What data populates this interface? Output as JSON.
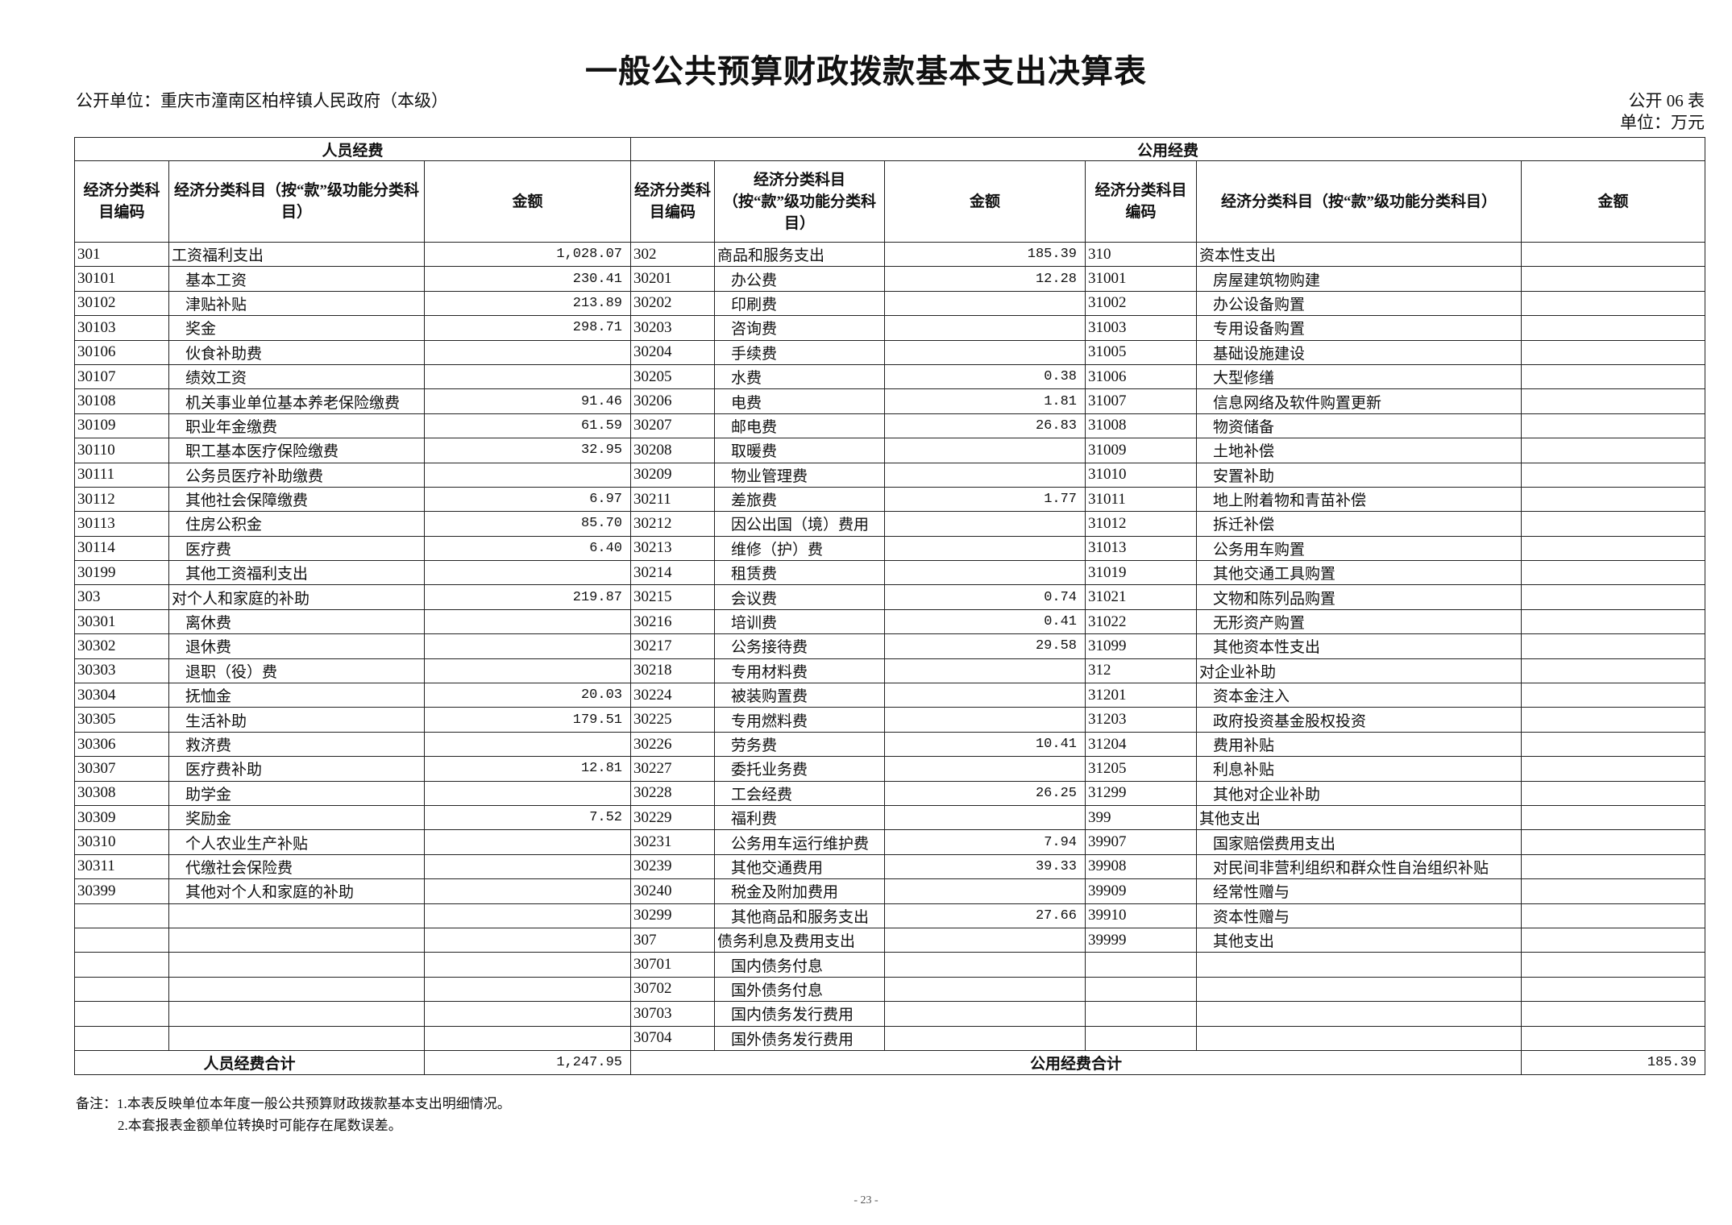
{
  "title": "一般公共预算财政拨款基本支出决算表",
  "unit": {
    "name": "公开单位：重庆市潼南区柏梓镇人民政府（本级）",
    "table_no": "公开 06 表",
    "currency": "单位：万元"
  },
  "groups": {
    "personnel": "人员经费",
    "public": "公用经费"
  },
  "headers": {
    "code": "经济分类科目编码",
    "name": "经济分类科目（按“款”级功能分类科目）",
    "amount": "金额"
  },
  "personnel_rows": [
    {
      "code": "301",
      "name": "工资福利支出",
      "amount": "1,028.07"
    },
    {
      "code": "30101",
      "name": "基本工资",
      "amount": "230.41"
    },
    {
      "code": "30102",
      "name": "津贴补贴",
      "amount": "213.89"
    },
    {
      "code": "30103",
      "name": "奖金",
      "amount": "298.71"
    },
    {
      "code": "30106",
      "name": "伙食补助费",
      "amount": ""
    },
    {
      "code": "30107",
      "name": "绩效工资",
      "amount": ""
    },
    {
      "code": "30108",
      "name": "机关事业单位基本养老保险缴费",
      "amount": "91.46"
    },
    {
      "code": "30109",
      "name": "职业年金缴费",
      "amount": "61.59"
    },
    {
      "code": "30110",
      "name": "职工基本医疗保险缴费",
      "amount": "32.95"
    },
    {
      "code": "30111",
      "name": "公务员医疗补助缴费",
      "amount": ""
    },
    {
      "code": "30112",
      "name": "其他社会保障缴费",
      "amount": "6.97"
    },
    {
      "code": "30113",
      "name": "住房公积金",
      "amount": "85.70"
    },
    {
      "code": "30114",
      "name": "医疗费",
      "amount": "6.40"
    },
    {
      "code": "30199",
      "name": "其他工资福利支出",
      "amount": ""
    },
    {
      "code": "303",
      "name": "对个人和家庭的补助",
      "amount": "219.87"
    },
    {
      "code": "30301",
      "name": "离休费",
      "amount": ""
    },
    {
      "code": "30302",
      "name": "退休费",
      "amount": ""
    },
    {
      "code": "30303",
      "name": "退职（役）费",
      "amount": ""
    },
    {
      "code": "30304",
      "name": "抚恤金",
      "amount": "20.03"
    },
    {
      "code": "30305",
      "name": "生活补助",
      "amount": "179.51"
    },
    {
      "code": "30306",
      "name": "救济费",
      "amount": ""
    },
    {
      "code": "30307",
      "name": "医疗费补助",
      "amount": "12.81"
    },
    {
      "code": "30308",
      "name": "助学金",
      "amount": ""
    },
    {
      "code": "30309",
      "name": "奖励金",
      "amount": "7.52"
    },
    {
      "code": "30310",
      "name": "个人农业生产补贴",
      "amount": ""
    },
    {
      "code": "30311",
      "name": "代缴社会保险费",
      "amount": ""
    },
    {
      "code": "30399",
      "name": "其他对个人和家庭的补助",
      "amount": ""
    }
  ],
  "public_rows_a": [
    {
      "code": "302",
      "name": "商品和服务支出",
      "amount": "185.39"
    },
    {
      "code": "30201",
      "name": "办公费",
      "amount": "12.28"
    },
    {
      "code": "30202",
      "name": "印刷费",
      "amount": ""
    },
    {
      "code": "30203",
      "name": "咨询费",
      "amount": ""
    },
    {
      "code": "30204",
      "name": "手续费",
      "amount": ""
    },
    {
      "code": "30205",
      "name": "水费",
      "amount": "0.38"
    },
    {
      "code": "30206",
      "name": "电费",
      "amount": "1.81"
    },
    {
      "code": "30207",
      "name": "邮电费",
      "amount": "26.83"
    },
    {
      "code": "30208",
      "name": "取暖费",
      "amount": ""
    },
    {
      "code": "30209",
      "name": "物业管理费",
      "amount": ""
    },
    {
      "code": "30211",
      "name": "差旅费",
      "amount": "1.77"
    },
    {
      "code": "30212",
      "name": "因公出国（境）费用",
      "amount": ""
    },
    {
      "code": "30213",
      "name": "维修（护）费",
      "amount": ""
    },
    {
      "code": "30214",
      "name": "租赁费",
      "amount": ""
    },
    {
      "code": "30215",
      "name": "会议费",
      "amount": "0.74"
    },
    {
      "code": "30216",
      "name": "培训费",
      "amount": "0.41"
    },
    {
      "code": "30217",
      "name": "公务接待费",
      "amount": "29.58"
    },
    {
      "code": "30218",
      "name": "专用材料费",
      "amount": ""
    },
    {
      "code": "30224",
      "name": "被装购置费",
      "amount": ""
    },
    {
      "code": "30225",
      "name": "专用燃料费",
      "amount": ""
    },
    {
      "code": "30226",
      "name": "劳务费",
      "amount": "10.41"
    },
    {
      "code": "30227",
      "name": "委托业务费",
      "amount": ""
    },
    {
      "code": "30228",
      "name": "工会经费",
      "amount": "26.25"
    },
    {
      "code": "30229",
      "name": "福利费",
      "amount": ""
    },
    {
      "code": "30231",
      "name": "公务用车运行维护费",
      "amount": "7.94"
    },
    {
      "code": "30239",
      "name": "其他交通费用",
      "amount": "39.33"
    },
    {
      "code": "30240",
      "name": "税金及附加费用",
      "amount": ""
    },
    {
      "code": "30299",
      "name": "其他商品和服务支出",
      "amount": "27.66"
    },
    {
      "code": "307",
      "name": "债务利息及费用支出",
      "amount": ""
    },
    {
      "code": "30701",
      "name": "国内债务付息",
      "amount": ""
    },
    {
      "code": "30702",
      "name": "国外债务付息",
      "amount": ""
    },
    {
      "code": "30703",
      "name": "国内债务发行费用",
      "amount": ""
    },
    {
      "code": "30704",
      "name": "国外债务发行费用",
      "amount": ""
    }
  ],
  "public_rows_b": [
    {
      "code": "310",
      "name": "资本性支出",
      "amount": ""
    },
    {
      "code": "31001",
      "name": "房屋建筑物购建",
      "amount": ""
    },
    {
      "code": "31002",
      "name": "办公设备购置",
      "amount": ""
    },
    {
      "code": "31003",
      "name": "专用设备购置",
      "amount": ""
    },
    {
      "code": "31005",
      "name": "基础设施建设",
      "amount": ""
    },
    {
      "code": "31006",
      "name": "大型修缮",
      "amount": ""
    },
    {
      "code": "31007",
      "name": "信息网络及软件购置更新",
      "amount": ""
    },
    {
      "code": "31008",
      "name": "物资储备",
      "amount": ""
    },
    {
      "code": "31009",
      "name": "土地补偿",
      "amount": ""
    },
    {
      "code": "31010",
      "name": "安置补助",
      "amount": ""
    },
    {
      "code": "31011",
      "name": "地上附着物和青苗补偿",
      "amount": ""
    },
    {
      "code": "31012",
      "name": "拆迁补偿",
      "amount": ""
    },
    {
      "code": "31013",
      "name": "公务用车购置",
      "amount": ""
    },
    {
      "code": "31019",
      "name": "其他交通工具购置",
      "amount": ""
    },
    {
      "code": "31021",
      "name": "文物和陈列品购置",
      "amount": ""
    },
    {
      "code": "31022",
      "name": "无形资产购置",
      "amount": ""
    },
    {
      "code": "31099",
      "name": "其他资本性支出",
      "amount": ""
    },
    {
      "code": "312",
      "name": "对企业补助",
      "amount": ""
    },
    {
      "code": "31201",
      "name": "资本金注入",
      "amount": ""
    },
    {
      "code": "31203",
      "name": "政府投资基金股权投资",
      "amount": ""
    },
    {
      "code": "31204",
      "name": "费用补贴",
      "amount": ""
    },
    {
      "code": "31205",
      "name": "利息补贴",
      "amount": ""
    },
    {
      "code": "31299",
      "name": "其他对企业补助",
      "amount": ""
    },
    {
      "code": "399",
      "name": "其他支出",
      "amount": ""
    },
    {
      "code": "39907",
      "name": "国家赔偿费用支出",
      "amount": ""
    },
    {
      "code": "39908",
      "name": "对民间非营利组织和群众性自治组织补贴",
      "amount": ""
    },
    {
      "code": "39909",
      "name": "经常性赠与",
      "amount": ""
    },
    {
      "code": "39910",
      "name": "资本性赠与",
      "amount": ""
    },
    {
      "code": "39999",
      "name": "其他支出",
      "amount": ""
    }
  ],
  "totals": {
    "personnel_label": "人员经费合计",
    "personnel_amount": "1,247.95",
    "public_label": "公用经费合计",
    "public_amount": "185.39"
  },
  "notes": [
    "备注：1.本表反映单位本年度一般公共预算财政拨款基本支出明细情况。",
    "2.本套报表金额单位转换时可能存在尾数误差。"
  ],
  "page_number": "- 23 -"
}
